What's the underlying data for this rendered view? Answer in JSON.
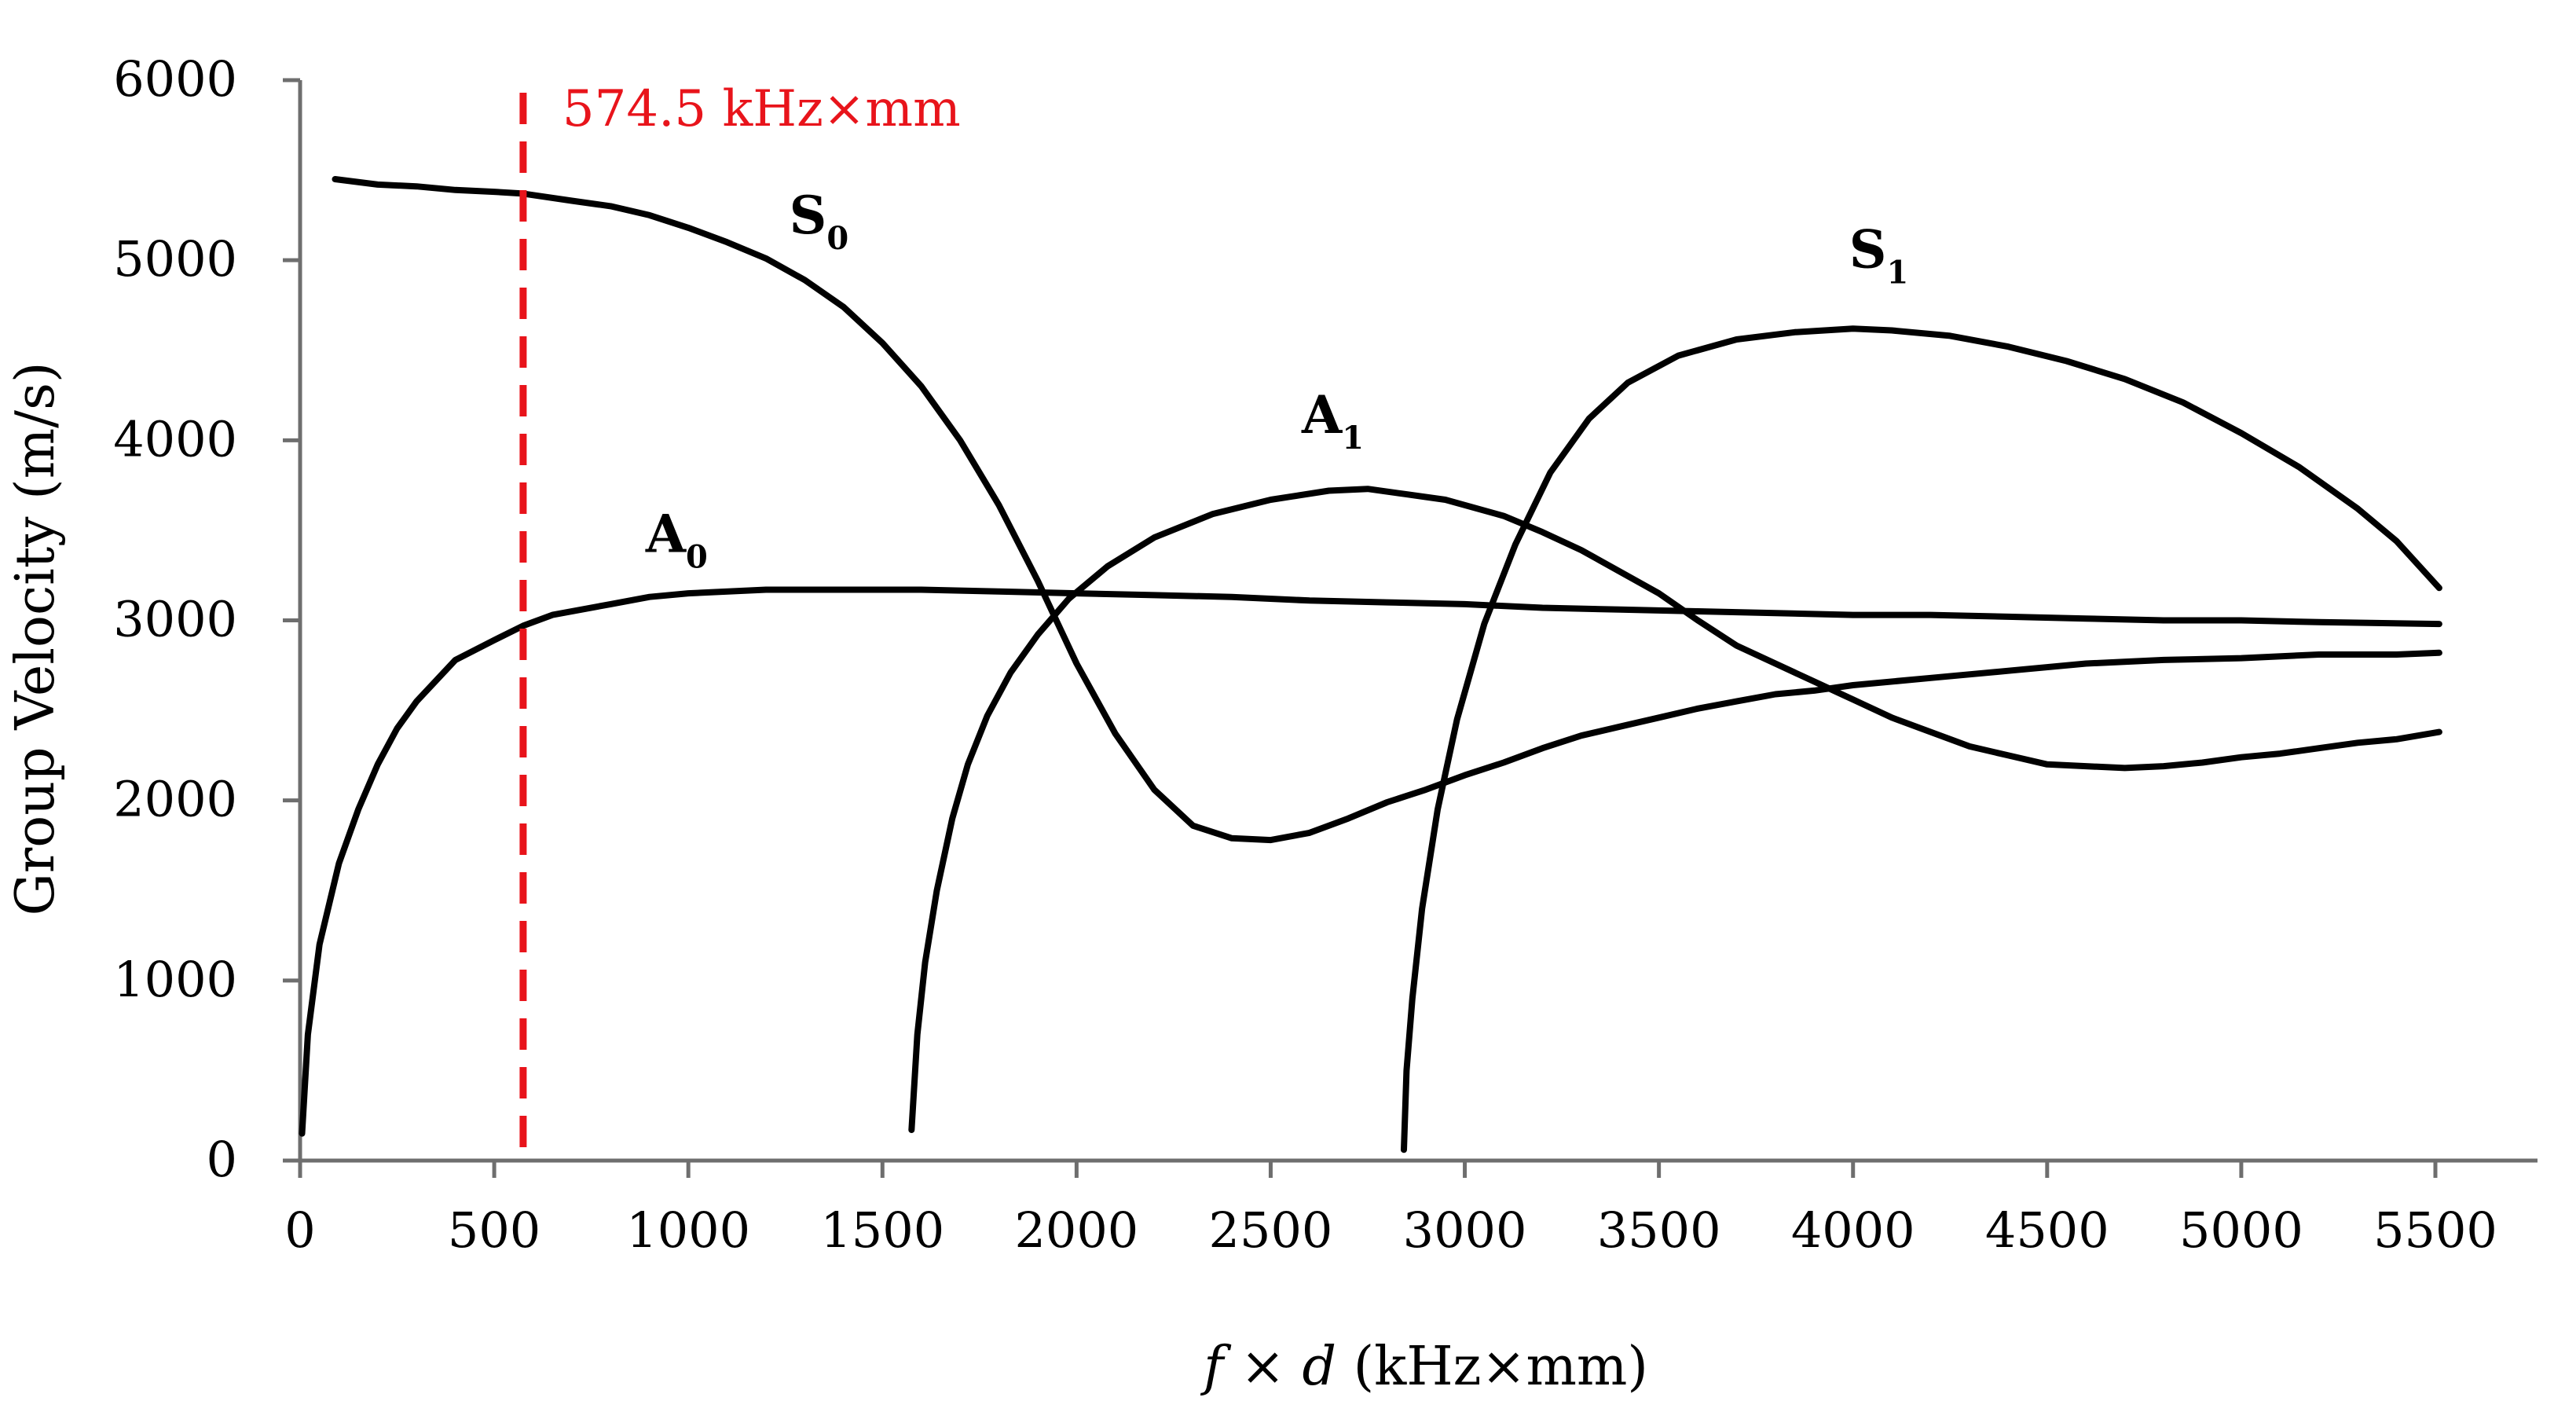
{
  "chart_data": {
    "type": "line",
    "title": "",
    "xlabel": {
      "italic_f": "f",
      "times": " × ",
      "italic_d": "d",
      "unit": " (kHz×mm)"
    },
    "ylabel": "Group Velocity (m/s)",
    "xlim": [
      0,
      5500
    ],
    "ylim": [
      0,
      6000
    ],
    "x_ticks": [
      0,
      500,
      1000,
      1500,
      2000,
      2500,
      3000,
      3500,
      4000,
      4500,
      5000,
      5500
    ],
    "y_ticks": [
      0,
      1000,
      2000,
      3000,
      4000,
      5000,
      6000
    ],
    "grid": false,
    "colors": {
      "series": "#000000",
      "marker": "#e8141b",
      "axis": "#6e6e6e"
    },
    "series": [
      {
        "name": "S0",
        "label_main": "S",
        "label_sub": "0",
        "label_at": [
          1260,
          5150
        ],
        "points": [
          [
            90,
            5450
          ],
          [
            200,
            5420
          ],
          [
            300,
            5410
          ],
          [
            400,
            5390
          ],
          [
            500,
            5380
          ],
          [
            574.5,
            5370
          ],
          [
            700,
            5330
          ],
          [
            800,
            5300
          ],
          [
            900,
            5250
          ],
          [
            1000,
            5180
          ],
          [
            1100,
            5100
          ],
          [
            1200,
            5010
          ],
          [
            1300,
            4890
          ],
          [
            1400,
            4740
          ],
          [
            1500,
            4540
          ],
          [
            1600,
            4300
          ],
          [
            1700,
            4000
          ],
          [
            1800,
            3640
          ],
          [
            1900,
            3220
          ],
          [
            2000,
            2760
          ],
          [
            2100,
            2370
          ],
          [
            2200,
            2060
          ],
          [
            2300,
            1860
          ],
          [
            2400,
            1790
          ],
          [
            2500,
            1780
          ],
          [
            2600,
            1820
          ],
          [
            2700,
            1900
          ],
          [
            2800,
            1990
          ],
          [
            2900,
            2060
          ],
          [
            3000,
            2140
          ],
          [
            3100,
            2210
          ],
          [
            3200,
            2290
          ],
          [
            3300,
            2360
          ],
          [
            3400,
            2410
          ],
          [
            3500,
            2460
          ],
          [
            3600,
            2510
          ],
          [
            3700,
            2550
          ],
          [
            3800,
            2590
          ],
          [
            3900,
            2610
          ],
          [
            4000,
            2640
          ],
          [
            4200,
            2680
          ],
          [
            4400,
            2720
          ],
          [
            4600,
            2760
          ],
          [
            4800,
            2780
          ],
          [
            5000,
            2790
          ],
          [
            5200,
            2810
          ],
          [
            5400,
            2810
          ],
          [
            5510,
            2820
          ]
        ]
      },
      {
        "name": "A0",
        "label_main": "A",
        "label_sub": "0",
        "label_at": [
          890,
          3380
        ],
        "points": [
          [
            5,
            150
          ],
          [
            20,
            700
          ],
          [
            50,
            1200
          ],
          [
            100,
            1650
          ],
          [
            150,
            1950
          ],
          [
            200,
            2200
          ],
          [
            250,
            2400
          ],
          [
            300,
            2550
          ],
          [
            400,
            2780
          ],
          [
            500,
            2890
          ],
          [
            574.5,
            2970
          ],
          [
            650,
            3030
          ],
          [
            800,
            3090
          ],
          [
            900,
            3130
          ],
          [
            1000,
            3150
          ],
          [
            1200,
            3170
          ],
          [
            1400,
            3170
          ],
          [
            1600,
            3170
          ],
          [
            1800,
            3160
          ],
          [
            2000,
            3150
          ],
          [
            2200,
            3140
          ],
          [
            2400,
            3130
          ],
          [
            2600,
            3110
          ],
          [
            2800,
            3100
          ],
          [
            3000,
            3090
          ],
          [
            3200,
            3070
          ],
          [
            3400,
            3060
          ],
          [
            3600,
            3050
          ],
          [
            3800,
            3040
          ],
          [
            4000,
            3030
          ],
          [
            4200,
            3030
          ],
          [
            4400,
            3020
          ],
          [
            4600,
            3010
          ],
          [
            4800,
            3000
          ],
          [
            5000,
            3000
          ],
          [
            5200,
            2990
          ],
          [
            5510,
            2980
          ]
        ]
      },
      {
        "name": "A1",
        "label_main": "A",
        "label_sub": "1",
        "label_at": [
          2580,
          4040
        ],
        "points": [
          [
            1575,
            170
          ],
          [
            1590,
            700
          ],
          [
            1610,
            1100
          ],
          [
            1640,
            1500
          ],
          [
            1680,
            1900
          ],
          [
            1720,
            2200
          ],
          [
            1770,
            2470
          ],
          [
            1830,
            2710
          ],
          [
            1900,
            2920
          ],
          [
            1980,
            3120
          ],
          [
            2080,
            3300
          ],
          [
            2200,
            3460
          ],
          [
            2350,
            3590
          ],
          [
            2500,
            3670
          ],
          [
            2650,
            3720
          ],
          [
            2750,
            3730
          ],
          [
            2850,
            3700
          ],
          [
            2950,
            3670
          ],
          [
            3100,
            3580
          ],
          [
            3200,
            3490
          ],
          [
            3300,
            3390
          ],
          [
            3400,
            3270
          ],
          [
            3500,
            3150
          ],
          [
            3600,
            3000
          ],
          [
            3700,
            2860
          ],
          [
            3800,
            2760
          ],
          [
            3900,
            2660
          ],
          [
            4000,
            2560
          ],
          [
            4100,
            2460
          ],
          [
            4200,
            2380
          ],
          [
            4300,
            2300
          ],
          [
            4400,
            2250
          ],
          [
            4500,
            2200
          ],
          [
            4600,
            2190
          ],
          [
            4700,
            2180
          ],
          [
            4800,
            2190
          ],
          [
            4900,
            2210
          ],
          [
            5000,
            2240
          ],
          [
            5100,
            2260
          ],
          [
            5200,
            2290
          ],
          [
            5300,
            2320
          ],
          [
            5400,
            2340
          ],
          [
            5510,
            2380
          ]
        ]
      },
      {
        "name": "S1",
        "label_main": "S",
        "label_sub": "1",
        "label_at": [
          3990,
          4960
        ],
        "points": [
          [
            2843,
            60
          ],
          [
            2850,
            500
          ],
          [
            2865,
            900
          ],
          [
            2890,
            1400
          ],
          [
            2930,
            1950
          ],
          [
            2980,
            2450
          ],
          [
            3050,
            2980
          ],
          [
            3130,
            3420
          ],
          [
            3220,
            3820
          ],
          [
            3320,
            4120
          ],
          [
            3420,
            4320
          ],
          [
            3550,
            4470
          ],
          [
            3700,
            4560
          ],
          [
            3850,
            4600
          ],
          [
            4000,
            4620
          ],
          [
            4100,
            4610
          ],
          [
            4250,
            4580
          ],
          [
            4400,
            4520
          ],
          [
            4550,
            4440
          ],
          [
            4700,
            4340
          ],
          [
            4850,
            4210
          ],
          [
            5000,
            4040
          ],
          [
            5150,
            3850
          ],
          [
            5300,
            3620
          ],
          [
            5400,
            3440
          ],
          [
            5510,
            3180
          ]
        ]
      }
    ],
    "marker": {
      "x": 574.5,
      "label": "574.5 kHz×mm",
      "style": "dashed"
    }
  }
}
